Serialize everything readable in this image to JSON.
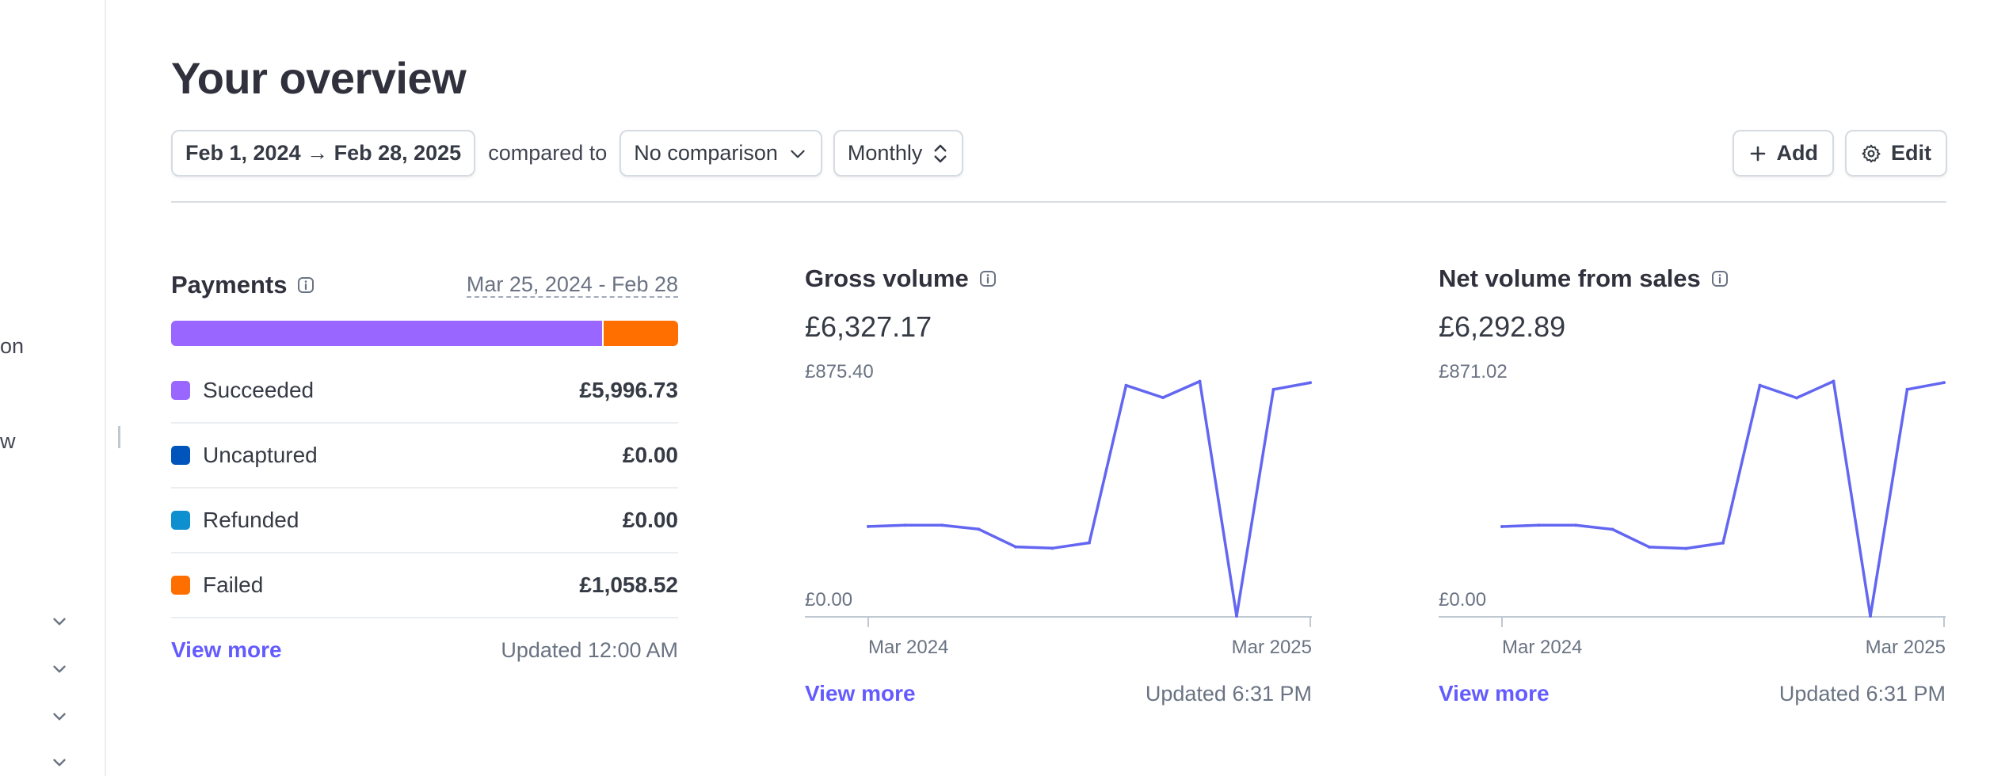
{
  "sidebar": {
    "fragments": [
      "on",
      "w"
    ]
  },
  "page": {
    "title": "Your overview"
  },
  "filters": {
    "date_range": "Feb 1, 2024 → Feb 28, 2025",
    "compared_label": "compared to",
    "comparison": "No comparison",
    "interval": "Monthly"
  },
  "actions": {
    "add": "Add",
    "edit": "Edit"
  },
  "payments": {
    "title": "Payments",
    "range": "Mar 25, 2024 - Feb 28",
    "bar": [
      {
        "label": "Succeeded",
        "fraction": 0.85,
        "color": "#9966ff"
      },
      {
        "label": "Failed",
        "fraction": 0.15,
        "color": "#ff6f00"
      }
    ],
    "statuses": [
      {
        "label": "Succeeded",
        "value": "£5,996.73",
        "color": "#9966ff"
      },
      {
        "label": "Uncaptured",
        "value": "£0.00",
        "color": "#0055bc"
      },
      {
        "label": "Refunded",
        "value": "£0.00",
        "color": "#0e8fcf"
      },
      {
        "label": "Failed",
        "value": "£1,058.52",
        "color": "#ff6f00"
      }
    ],
    "view_more": "View more",
    "updated": "Updated 12:00 AM"
  },
  "metrics": [
    {
      "title": "Gross volume",
      "value": "£6,327.17",
      "view_more": "View more",
      "updated": "Updated 6:31 PM"
    },
    {
      "title": "Net volume from sales",
      "value": "£6,292.89",
      "view_more": "View more",
      "updated": "Updated 6:31 PM"
    }
  ],
  "chart_data": [
    {
      "type": "line",
      "title": "Gross volume",
      "color": "#6366f1",
      "x": [
        "Mar 2024",
        "Apr 2024",
        "May 2024",
        "Jun 2024",
        "Jul 2024",
        "Aug 2024",
        "Sep 2024",
        "Oct 2024",
        "Nov 2024",
        "Dec 2024",
        "Jan 2025",
        "Feb 2025",
        "Mar 2025"
      ],
      "y": [
        330,
        335,
        335,
        320,
        255,
        250,
        270,
        850,
        805,
        865,
        0,
        835,
        860
      ],
      "xticks": [
        "Mar 2024",
        "Mar 2025"
      ],
      "yticks": [
        "£875.40",
        "£0.00"
      ],
      "ylim": [
        0,
        875.4
      ]
    },
    {
      "type": "line",
      "title": "Net volume from sales",
      "color": "#6366f1",
      "x": [
        "Mar 2024",
        "Apr 2024",
        "May 2024",
        "Jun 2024",
        "Jul 2024",
        "Aug 2024",
        "Sep 2024",
        "Oct 2024",
        "Nov 2024",
        "Dec 2024",
        "Jan 2025",
        "Feb 2025",
        "Mar 2025"
      ],
      "y": [
        328,
        333,
        333,
        318,
        253,
        248,
        268,
        846,
        800,
        861,
        0,
        831,
        856
      ],
      "xticks": [
        "Mar 2024",
        "Mar 2025"
      ],
      "yticks": [
        "£871.02",
        "£0.00"
      ],
      "ylim": [
        0,
        871.02
      ]
    }
  ]
}
